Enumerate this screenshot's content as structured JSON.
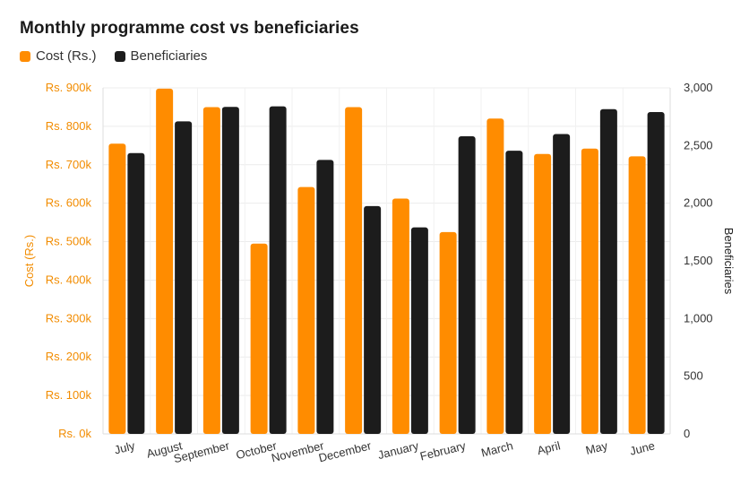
{
  "chart_data": {
    "type": "bar",
    "title": "Monthly programme cost vs beneficiaries",
    "categories": [
      "July",
      "August",
      "September",
      "October",
      "November",
      "December",
      "January",
      "February",
      "March",
      "April",
      "May",
      "June"
    ],
    "series": [
      {
        "name": "Cost (Rs.)",
        "axis": "left",
        "color": "#ff8c00",
        "values": [
          755000,
          898000,
          850000,
          495000,
          642000,
          850000,
          612000,
          525000,
          820000,
          728000,
          742000,
          722000
        ]
      },
      {
        "name": "Beneficiaries",
        "axis": "right",
        "color": "#1c1c1c",
        "values": [
          2435,
          2710,
          2835,
          2840,
          2375,
          1975,
          1790,
          2580,
          2455,
          2600,
          2815,
          2790
        ]
      }
    ],
    "y_left": {
      "label": "Cost (Rs.)",
      "ylim": [
        0,
        900000
      ],
      "ticks": [
        0,
        100000,
        200000,
        300000,
        400000,
        500000,
        600000,
        700000,
        800000,
        900000
      ],
      "tick_labels": [
        "Rs. 0k",
        "Rs. 100k",
        "Rs. 200k",
        "Rs. 300k",
        "Rs. 400k",
        "Rs. 500k",
        "Rs. 600k",
        "Rs. 700k",
        "Rs. 800k",
        "Rs. 900k"
      ]
    },
    "y_right": {
      "label": "Beneficiaries",
      "ylim": [
        0,
        3000
      ],
      "ticks": [
        0,
        500,
        1000,
        1500,
        2000,
        2500,
        3000
      ],
      "tick_labels": [
        "0",
        "500",
        "1,000",
        "1,500",
        "2,000",
        "2,500",
        "3,000"
      ]
    },
    "grid": true,
    "legend_position": "top-left"
  }
}
